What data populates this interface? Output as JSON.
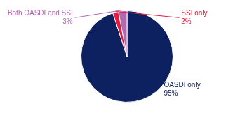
{
  "chart_data": {
    "type": "pie",
    "categories": [
      "OASDI only",
      "SSI only",
      "Both OASDI and SSI"
    ],
    "values": [
      95,
      2,
      3
    ],
    "value_labels": [
      "95%",
      "2%",
      "3%"
    ],
    "colors": [
      "#0d2060",
      "#e8193c",
      "#b06aae"
    ],
    "data_labels": true
  }
}
